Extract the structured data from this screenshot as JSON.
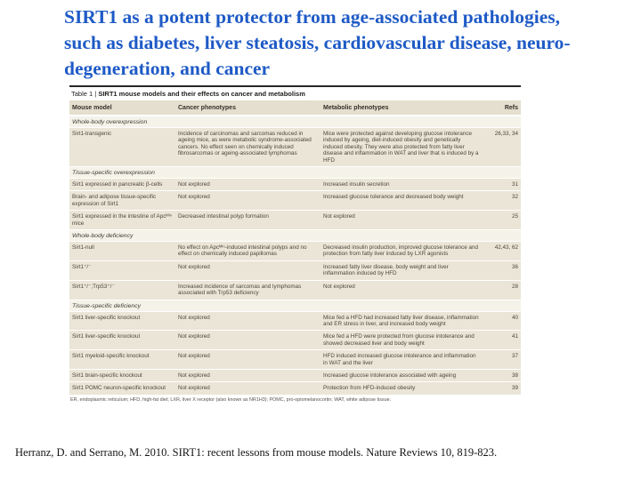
{
  "slide": {
    "title_lines": [
      "SIRT1 as a potent protector from age-associated pathologies,",
      "such as diabetes, liver steatosis, cardiovascular disease, neuro-",
      "degeneration, and cancer"
    ],
    "title_color": "#1e5ac6",
    "citation": "Herranz, D. and Serrano, M. 2010. SIRT1: recent lessons from mouse models. Nature Reviews 10, 819-823."
  },
  "table": {
    "caption_prefix": "Table 1 | ",
    "caption_title": "SIRT1 mouse models and their effects on cancer and metabolism",
    "columns": [
      "Mouse model",
      "Cancer phenotypes",
      "Metabolic phenotypes",
      "Refs"
    ],
    "colors": {
      "header_bg": "#e4dfce",
      "row_bg": "#eae5d6",
      "section_bg": "#f5f2e9",
      "top_rule": "#262626"
    },
    "sections": [
      {
        "label": "Whole-body overexpression",
        "rows": [
          {
            "model": "Sirt1-transgenic",
            "cancer": "Incidence of carcinomas and sarcomas reduced in ageing mice, as were metabolic syndrome-associated cancers. No effect seen on chemically induced fibrosarcomas or ageing-associated lymphomas",
            "metabolic": "Mice were protected against developing glucose intolerance induced by ageing, diet-induced obesity and genetically induced obesity. They were also protected from fatty liver disease and inflammation in WAT and liver that is induced by a HFD",
            "refs": "26,33, 34"
          }
        ]
      },
      {
        "label": "Tissue-specific overexpression",
        "rows": [
          {
            "model": "Sirt1 expressed in pancreatic β-cells",
            "cancer": "Not explored",
            "metabolic": "Increased insulin secretion",
            "refs": "31"
          },
          {
            "model": "Brain- and adipose tissue-specific expression of Sirt1",
            "cancer": "Not explored",
            "metabolic": "Increased glucose tolerance and decreased body weight",
            "refs": "32"
          },
          {
            "model": "Sirt1 expressed in the intestine of Apcᴹⁱⁿ mice",
            "cancer": "Decreased intestinal polyp formation",
            "metabolic": "Not explored",
            "refs": "25"
          }
        ]
      },
      {
        "label": "Whole-body deficiency",
        "rows": [
          {
            "model": "Sirt1-null",
            "cancer": "No effect on Apcᴹⁱⁿ-induced intestinal polyps and no effect on chemically induced papillomas",
            "metabolic": "Decreased insulin production, improved glucose tolerance and protection from fatty liver induced by LXR agonists",
            "refs": "42,43, 62"
          },
          {
            "model": "Sirt1⁺/⁻",
            "cancer": "Not explored",
            "metabolic": "Increased fatty liver disease, body weight and liver inflammation induced by HFD",
            "refs": "36"
          },
          {
            "model": "Sirt1⁺/⁻;Trp53⁺/⁻",
            "cancer": "Increased incidence of sarcomas and lymphomas associated with Trp53 deficiency",
            "metabolic": "Not explored",
            "refs": "28"
          }
        ]
      },
      {
        "label": "Tissue-specific deficiency",
        "rows": [
          {
            "model": "Sirt1 liver-specific knockout",
            "cancer": "Not explored",
            "metabolic": "Mice fed a HFD had increased fatty liver disease, inflammation and ER stress in liver, and increased body weight",
            "refs": "40"
          },
          {
            "model": "Sirt1 liver-specific knockout",
            "cancer": "Not explored",
            "metabolic": "Mice fed a HFD were protected from glucose intolerance and showed decreased liver and body weight",
            "refs": "41"
          },
          {
            "model": "Sirt1 myeloid-specific knockout",
            "cancer": "Not explored",
            "metabolic": "HFD induced increased glucose intolerance and inflammation in WAT and the liver",
            "refs": "37"
          },
          {
            "model": "Sirt1 brain-specific knockout",
            "cancer": "Not explored",
            "metabolic": "Increased glucose intolerance associated with ageing",
            "refs": "38"
          },
          {
            "model": "Sirt1 POMC neuron-specific knockout",
            "cancer": "Not explored",
            "metabolic": "Protection from HFD-induced obesity",
            "refs": "39"
          }
        ]
      }
    ],
    "footnote": "ER, endoplasmic reticulum; HFD, high-fat diet; LXR, liver X receptor (also known as NR1H3); POMC, pro-opiomelanocortin; WAT, white adipose tissue."
  }
}
